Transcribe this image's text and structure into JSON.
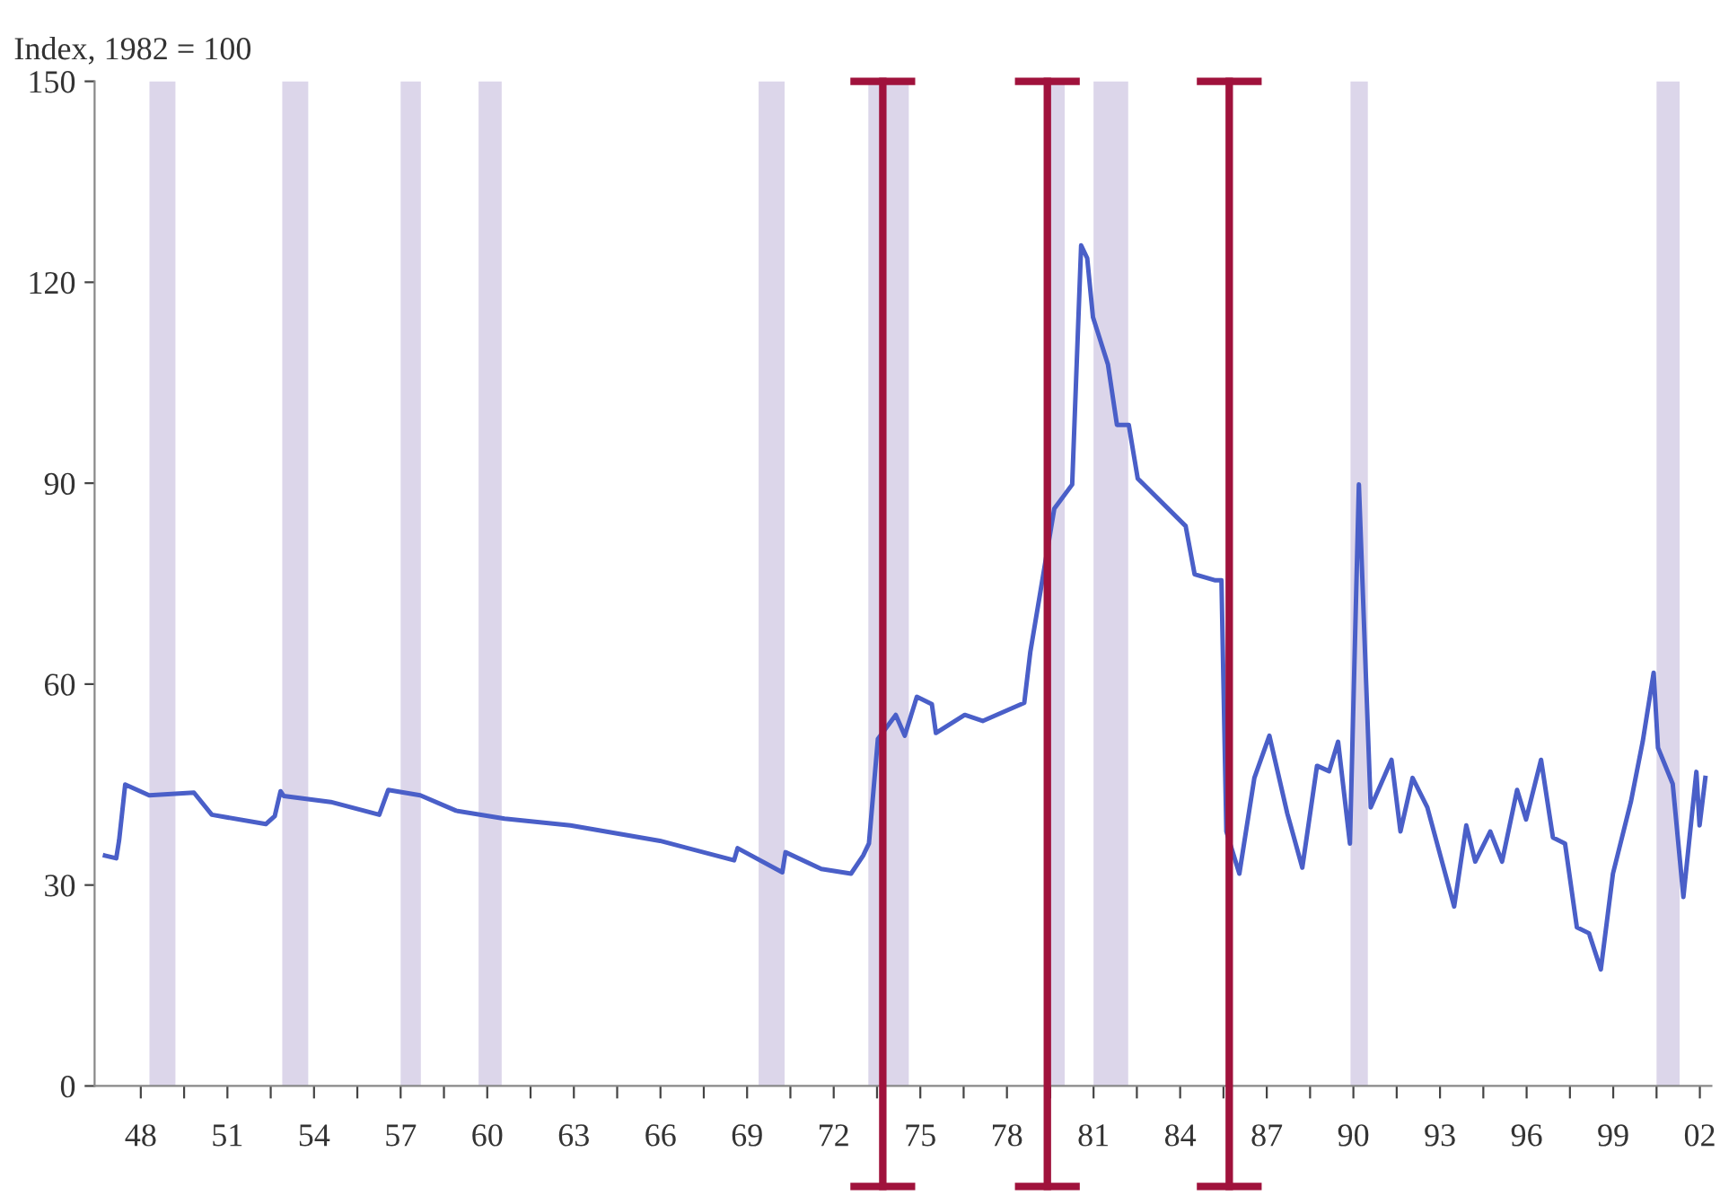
{
  "chart_data": {
    "type": "line",
    "ylabel": "Index, 1982 = 100",
    "x": [
      1946.76,
      1947.15,
      1947.25,
      1947.46,
      1948.29,
      1949.84,
      1950.46,
      1952.33,
      1952.64,
      1952.84,
      1952.95,
      1954.58,
      1956.26,
      1956.57,
      1957.68,
      1958.92,
      1960.6,
      1962.88,
      1965.98,
      1968.55,
      1968.67,
      1970.22,
      1970.33,
      1971.57,
      1972.6,
      1973.02,
      1973.22,
      1973.53,
      1974.15,
      1974.46,
      1974.88,
      1975.4,
      1975.54,
      1976.54,
      1977.16,
      1978.6,
      1978.81,
      1979.64,
      1980.26,
      1980.57,
      1980.78,
      1980.98,
      1981.5,
      1981.81,
      1982.22,
      1982.53,
      1984.19,
      1984.5,
      1985.22,
      1985.43,
      1985.6,
      1986.05,
      1986.57,
      1987.09,
      1987.71,
      1988.23,
      1988.74,
      1989.16,
      1989.47,
      1989.88,
      1990.19,
      1990.6,
      1991.32,
      1991.63,
      1992.05,
      1992.56,
      1993.49,
      1993.91,
      1994.22,
      1994.74,
      1995.15,
      1995.67,
      1995.98,
      1996.5,
      1996.91,
      1997.33,
      1997.74,
      1998.16,
      1998.57,
      1998.99,
      1999.61,
      2000.02,
      2000.4,
      2000.55,
      2001.06,
      2001.43,
      2001.88,
      2001.99,
      2002.19
    ],
    "series": [
      {
        "color": "#4a5fc8",
        "values": [
          34.4,
          34,
          36.7,
          45,
          43.4,
          43.8,
          40.5,
          39.1,
          40.3,
          44,
          43.3,
          42.4,
          40.5,
          44.2,
          43.4,
          41.1,
          39.9,
          38.9,
          36.6,
          33.7,
          35.5,
          31.9,
          34.9,
          32.4,
          31.7,
          34.4,
          36.2,
          51.8,
          55.4,
          52.3,
          58.1,
          57,
          52.7,
          55.4,
          54.5,
          57.2,
          64.8,
          86.2,
          89.8,
          125.5,
          123.6,
          114.8,
          107.7,
          98.7,
          98.7,
          90.7,
          83.6,
          76.4,
          75.5,
          75.5,
          38,
          31.7,
          46,
          52.3,
          40.7,
          32.6,
          47.8,
          47,
          51.4,
          36.2,
          89.8,
          41.6,
          48.7,
          38,
          46,
          41.6,
          26.8,
          38.9,
          33.5,
          38,
          33.5,
          44.2,
          39.8,
          48.7,
          37.1,
          36.2,
          23.7,
          22.8,
          17.4,
          31.7,
          42.4,
          51.4,
          61.7,
          50.5,
          45.1,
          28.2,
          46.9,
          38.9,
          46
        ]
      }
    ],
    "xlim": [
      1946.4,
      2002.4
    ],
    "ylim": [
      0,
      150
    ],
    "yticks": [
      0,
      30,
      60,
      90,
      120,
      150
    ],
    "xticks": [
      {
        "value": 1948,
        "label": "48"
      },
      {
        "value": 1949.5,
        "label": null
      },
      {
        "value": 1951,
        "label": "51"
      },
      {
        "value": 1952.5,
        "label": null
      },
      {
        "value": 1954,
        "label": "54"
      },
      {
        "value": 1955.5,
        "label": null
      },
      {
        "value": 1957,
        "label": "57"
      },
      {
        "value": 1958.5,
        "label": null
      },
      {
        "value": 1960,
        "label": "60"
      },
      {
        "value": 1961.5,
        "label": null
      },
      {
        "value": 1963,
        "label": "63"
      },
      {
        "value": 1964.5,
        "label": null
      },
      {
        "value": 1966,
        "label": "66"
      },
      {
        "value": 1967.5,
        "label": null
      },
      {
        "value": 1969,
        "label": "69"
      },
      {
        "value": 1970.5,
        "label": null
      },
      {
        "value": 1972,
        "label": "72"
      },
      {
        "value": 1973.5,
        "label": null
      },
      {
        "value": 1975,
        "label": "75"
      },
      {
        "value": 1976.5,
        "label": null
      },
      {
        "value": 1978,
        "label": "78"
      },
      {
        "value": 1979.5,
        "label": null
      },
      {
        "value": 1981,
        "label": "81"
      },
      {
        "value": 1982.5,
        "label": null
      },
      {
        "value": 1984,
        "label": "84"
      },
      {
        "value": 1985.5,
        "label": null
      },
      {
        "value": 1987,
        "label": "87"
      },
      {
        "value": 1988.5,
        "label": null
      },
      {
        "value": 1990,
        "label": "90"
      },
      {
        "value": 1991.5,
        "label": null
      },
      {
        "value": 1993,
        "label": "93"
      },
      {
        "value": 1994.5,
        "label": null
      },
      {
        "value": 1996,
        "label": "96"
      },
      {
        "value": 1997.5,
        "label": null
      },
      {
        "value": 1999,
        "label": "99"
      },
      {
        "value": 2000.5,
        "label": null
      },
      {
        "value": 2002,
        "label": "02"
      }
    ],
    "bands": [
      {
        "axis": "x",
        "from": 1948.3,
        "to": 1949.2,
        "color": "#dcd6ea"
      },
      {
        "axis": "x",
        "from": 1952.9,
        "to": 1953.8,
        "color": "#dcd6ea"
      },
      {
        "axis": "x",
        "from": 1957.0,
        "to": 1957.7,
        "color": "#dcd6ea"
      },
      {
        "axis": "x",
        "from": 1959.7,
        "to": 1960.5,
        "color": "#dcd6ea"
      },
      {
        "axis": "x",
        "from": 1969.4,
        "to": 1970.3,
        "color": "#dcd6ea"
      },
      {
        "axis": "x",
        "from": 1973.2,
        "to": 1974.6,
        "color": "#dcd6ea"
      },
      {
        "axis": "x",
        "from": 1979.5,
        "to": 1980.0,
        "color": "#dcd6ea"
      },
      {
        "axis": "x",
        "from": 1981.0,
        "to": 1982.2,
        "color": "#dcd6ea"
      },
      {
        "axis": "x",
        "from": 1989.9,
        "to": 1990.5,
        "color": "#dcd6ea"
      },
      {
        "axis": "x",
        "from": 2000.5,
        "to": 2001.3,
        "color": "#dcd6ea"
      }
    ],
    "ref_lines": [
      {
        "axis": "x",
        "value": 1973.7,
        "color": "#a0123c"
      },
      {
        "axis": "x",
        "value": 1979.4,
        "color": "#a0123c"
      },
      {
        "axis": "x",
        "value": 1985.7,
        "color": "#a0123c"
      }
    ],
    "line_style": "solid",
    "marker": "none",
    "grid": false,
    "legend": false
  }
}
